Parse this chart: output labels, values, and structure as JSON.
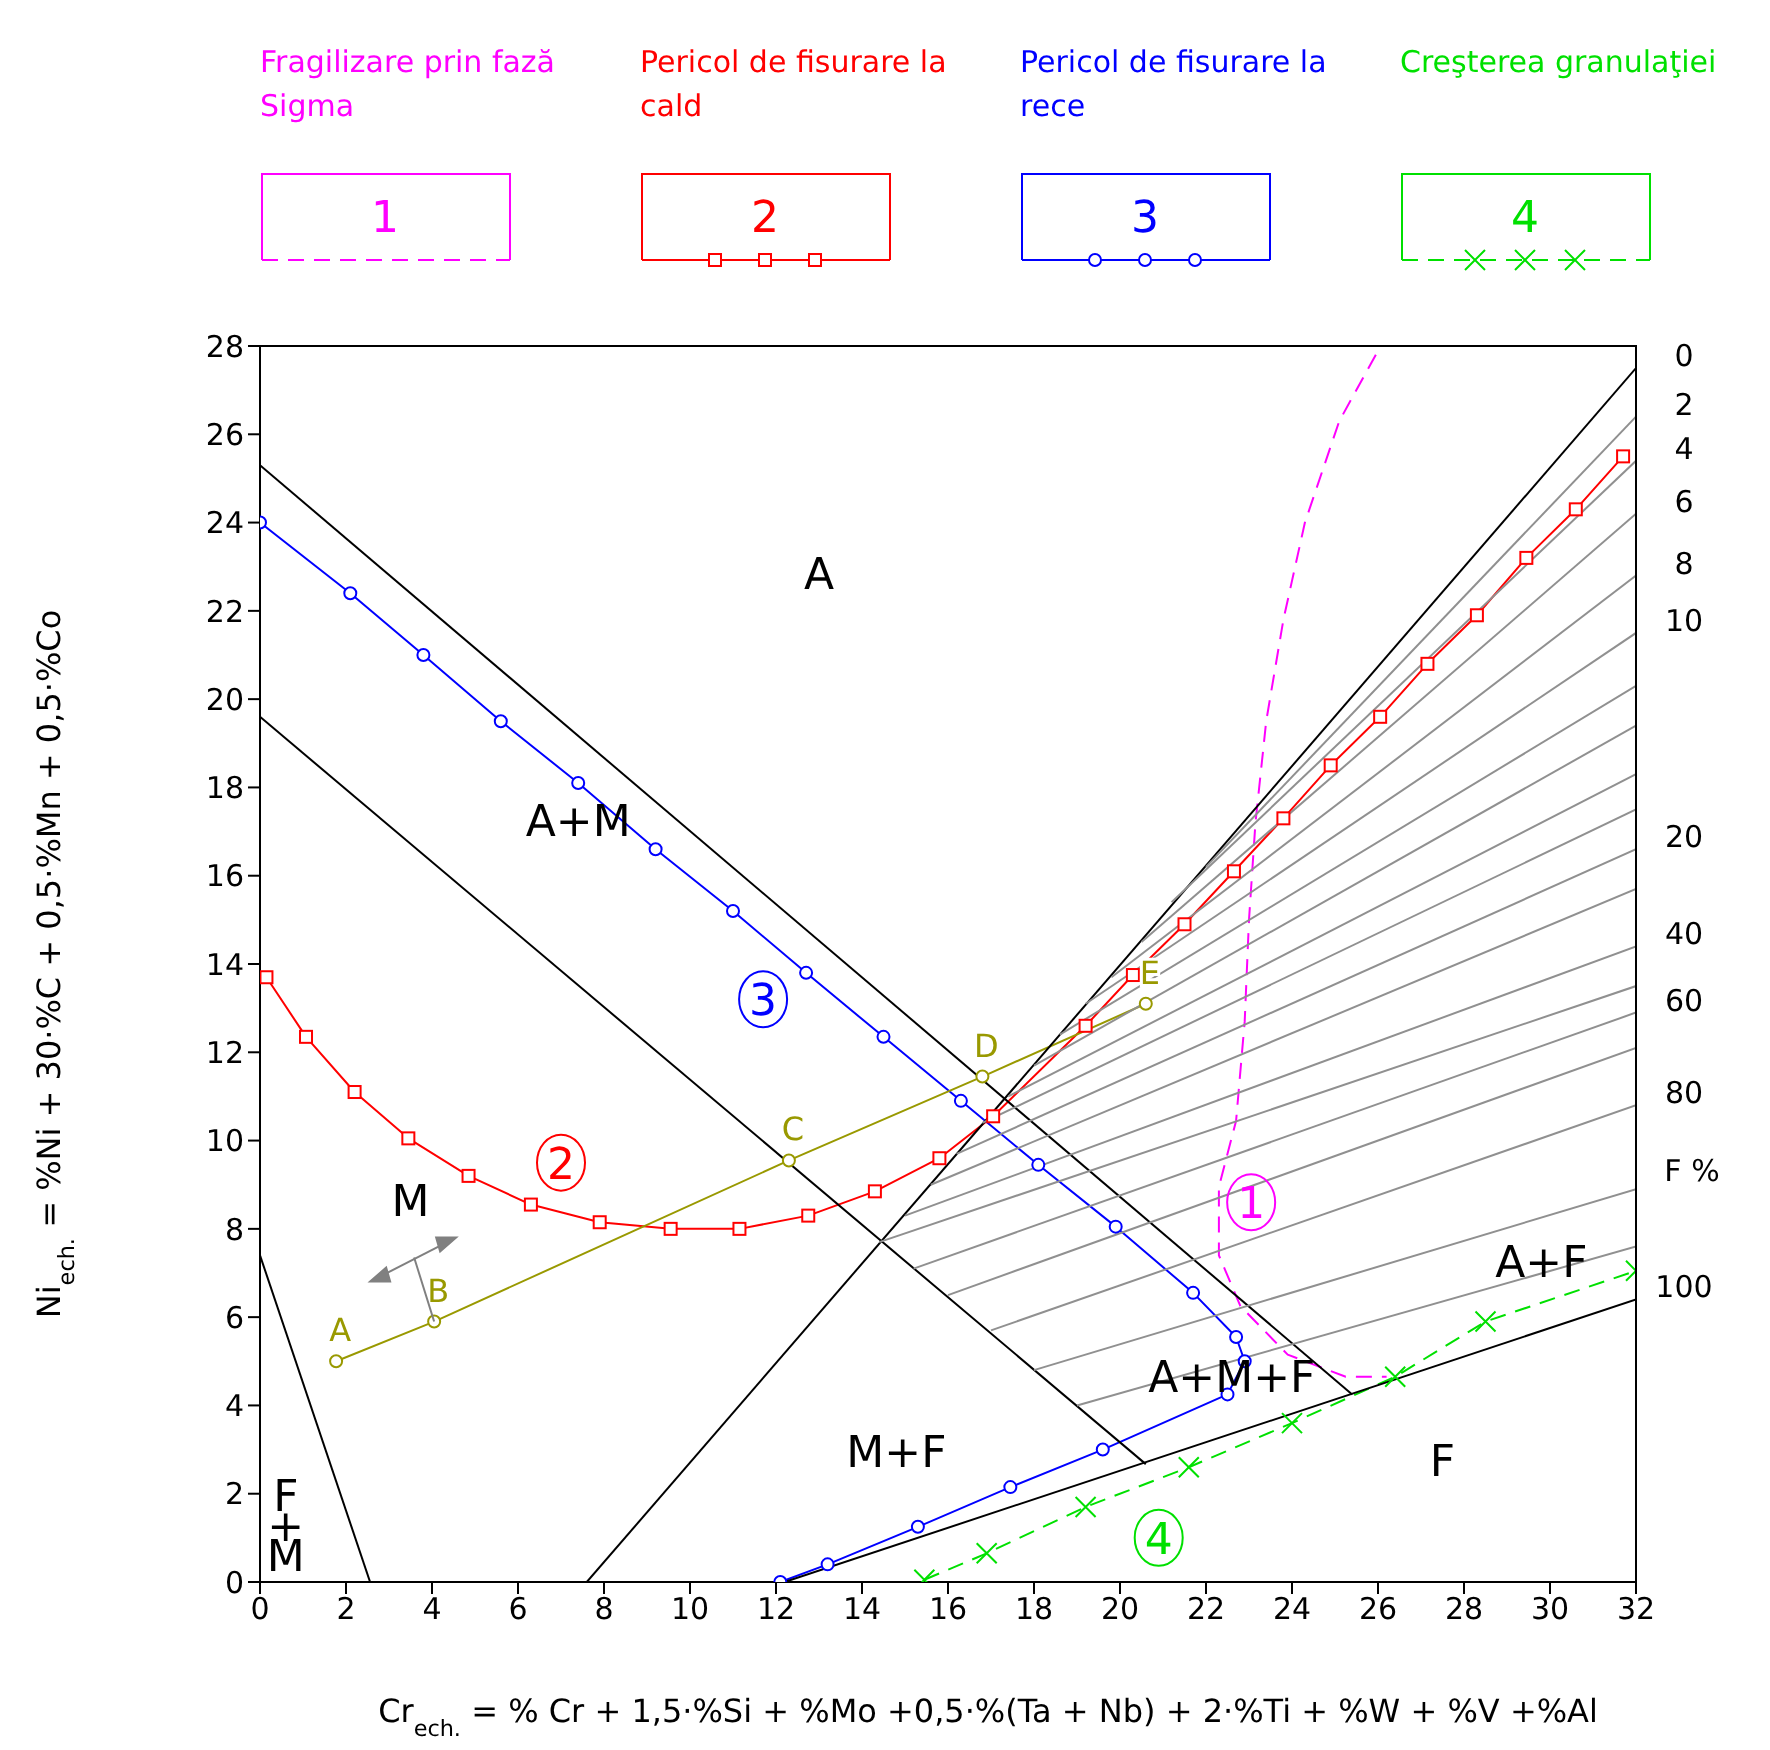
{
  "chart_data": {
    "type": "line",
    "xlabel": "Cr$_{ech.}$ = % Cr + 1,5·%Si + %Mo +0,5·%(Ta + Nb) + 2·%Ti + %W + %V +%Al",
    "ylabel": "Ni$_{ech.}$ = %Ni + 30·%C + 0,5·%Mn + 0,5·%Co",
    "xlim": [
      0,
      32
    ],
    "xticks": [
      0,
      2,
      4,
      6,
      8,
      10,
      12,
      14,
      16,
      18,
      20,
      22,
      24,
      26,
      28,
      30,
      32
    ],
    "ylim": [
      0,
      28
    ],
    "yticks": [
      0,
      2,
      4,
      6,
      8,
      10,
      12,
      14,
      16,
      18,
      20,
      22,
      24,
      26,
      28
    ],
    "legend": "top",
    "marker": "none",
    "line_style": "solid",
    "series": [
      {
        "name": "Fragilizare prin fază Sigma",
        "color": "#ff00ff",
        "line_style": "dashed",
        "marker": "none",
        "x": [
          25.95,
          25.1,
          24.3,
          23.8,
          23.4,
          23.15,
          23.0,
          22.9,
          22.7,
          22.3,
          22.3,
          22.8,
          23.9,
          25.25,
          26.2
        ],
        "values": [
          27.8,
          26.3,
          24.0,
          21.8,
          19.5,
          17.2,
          15.0,
          12.7,
          10.45,
          8.95,
          7.4,
          6.25,
          5.15,
          4.65,
          4.65
        ]
      },
      {
        "name": "Pericol de fisurare la cald",
        "color": "#ff0000",
        "line_style": "solid",
        "marker": "square",
        "x": [
          0.15,
          1.07,
          2.2,
          3.45,
          4.85,
          6.3,
          7.9,
          9.55,
          11.15,
          12.75,
          14.3,
          15.8,
          17.05,
          19.2,
          20.3,
          21.5,
          22.65,
          23.8,
          24.9,
          26.05,
          27.15,
          28.3,
          29.45,
          30.6,
          31.7
        ],
        "values": [
          13.7,
          12.35,
          11.1,
          10.05,
          9.2,
          8.55,
          8.15,
          8.0,
          8.0,
          8.3,
          8.85,
          9.6,
          10.55,
          12.6,
          13.75,
          14.9,
          16.1,
          17.3,
          18.5,
          19.6,
          20.8,
          21.9,
          23.2,
          24.3,
          25.5
        ]
      },
      {
        "name": "Pericol de fisurare la rece",
        "color": "#0000ff",
        "line_style": "solid",
        "marker": "circle",
        "x": [
          0,
          2.1,
          3.8,
          5.6,
          7.4,
          9.2,
          11.0,
          12.7,
          14.5,
          16.3,
          18.1,
          19.9,
          21.7,
          22.7,
          22.9,
          22.5,
          19.6,
          17.45,
          15.3,
          13.2,
          12.1
        ],
        "values": [
          24.0,
          22.4,
          21.0,
          19.5,
          18.1,
          16.6,
          15.2,
          13.8,
          12.35,
          10.9,
          9.45,
          8.05,
          6.55,
          5.55,
          5.0,
          4.25,
          3.0,
          2.15,
          1.25,
          0.4,
          0
        ]
      },
      {
        "name": "Creşterea granulaţiei",
        "color": "#00e000",
        "line_style": "dashed",
        "marker": "cross",
        "x": [
          15.45,
          16.9,
          19.2,
          21.6,
          24.0,
          26.4,
          28.5,
          32
        ],
        "values": [
          0.05,
          0.65,
          1.7,
          2.6,
          3.6,
          4.65,
          5.9,
          7.05
        ]
      },
      {
        "color": "#999900",
        "marker": "circle",
        "x": [
          1.77,
          4.05,
          12.3,
          16.8,
          20.6
        ],
        "values": [
          5.0,
          5.9,
          9.55,
          11.45,
          13.1
        ]
      },
      {
        "color": "#000000",
        "x": [
          0,
          25.4
        ],
        "values": [
          25.3,
          4.25
        ]
      },
      {
        "color": "#000000",
        "x": [
          0,
          20.6
        ],
        "values": [
          19.6,
          2.67
        ]
      },
      {
        "color": "#000000",
        "x": [
          0,
          2.56
        ],
        "values": [
          7.4,
          0
        ]
      },
      {
        "name": "0",
        "color": "#000000",
        "x": [
          7.6,
          32
        ],
        "values": [
          0,
          27.5
        ]
      },
      {
        "name": "100",
        "color": "#000000",
        "x": [
          12.2,
          32
        ],
        "values": [
          0,
          6.4
        ]
      },
      {
        "name": "2",
        "color": "#909090",
        "x": [
          22,
          32
        ],
        "values": [
          16.2,
          26.4
        ]
      },
      {
        "name": "4",
        "color": "#909090",
        "x": [
          21.2,
          32
        ],
        "values": [
          15.4,
          25.4
        ]
      },
      {
        "name": "6",
        "color": "#909090",
        "x": [
          20.5,
          32
        ],
        "values": [
          14.5,
          24.2
        ]
      },
      {
        "name": "8",
        "color": "#909090",
        "x": [
          19.8,
          32
        ],
        "values": [
          13.7,
          22.8
        ]
      },
      {
        "name": "10",
        "color": "#909090",
        "x": [
          19.2,
          32
        ],
        "values": [
          13.1,
          21.5
        ]
      },
      {
        "color": "#909090",
        "x": [
          18.6,
          32
        ],
        "values": [
          12.4,
          20.3
        ]
      },
      {
        "color": "#909090",
        "x": [
          18.0,
          32
        ],
        "values": [
          11.7,
          19.4
        ]
      },
      {
        "color": "#909090",
        "x": [
          17.4,
          32
        ],
        "values": [
          11.0,
          18.3
        ]
      },
      {
        "color": "#909090",
        "x": [
          16.8,
          32
        ],
        "values": [
          10.4,
          17.5
        ]
      },
      {
        "name": "20",
        "color": "#909090",
        "x": [
          16.2,
          32
        ],
        "values": [
          9.7,
          16.6
        ]
      },
      {
        "color": "#909090",
        "x": [
          15.6,
          32
        ],
        "values": [
          9.0,
          15.7
        ]
      },
      {
        "name": "40",
        "color": "#909090",
        "x": [
          15.0,
          32
        ],
        "values": [
          8.3,
          14.4
        ]
      },
      {
        "color": "#909090",
        "x": [
          14.4,
          32
        ],
        "values": [
          7.7,
          13.5
        ]
      },
      {
        "name": "60",
        "color": "#909090",
        "x": [
          15.2,
          32
        ],
        "values": [
          7.1,
          12.9
        ]
      },
      {
        "color": "#909090",
        "x": [
          16.0,
          32
        ],
        "values": [
          6.5,
          12.1
        ]
      },
      {
        "name": "80",
        "color": "#909090",
        "x": [
          17.0,
          32
        ],
        "values": [
          5.7,
          10.8
        ]
      },
      {
        "color": "#909090",
        "x": [
          18.0,
          32
        ],
        "values": [
          4.8,
          8.9
        ]
      },
      {
        "color": "#909090",
        "x": [
          19.0,
          32
        ],
        "values": [
          4.0,
          7.6
        ]
      }
    ],
    "annotations": [
      "1",
      "2",
      "3",
      "4",
      "A",
      "A+M",
      "M",
      "F+M",
      "M+F",
      "A+M+F",
      "F",
      "A+F",
      "F %",
      {
        "text": "A",
        "x": 1.77,
        "y": 5.0
      },
      {
        "text": "B",
        "x": 4.05,
        "y": 5.9
      },
      {
        "text": "C",
        "x": 12.3,
        "y": 9.55
      },
      {
        "text": "D",
        "x": 16.8,
        "y": 11.45
      },
      {
        "text": "E",
        "x": 20.6,
        "y": 13.1
      }
    ]
  }
}
